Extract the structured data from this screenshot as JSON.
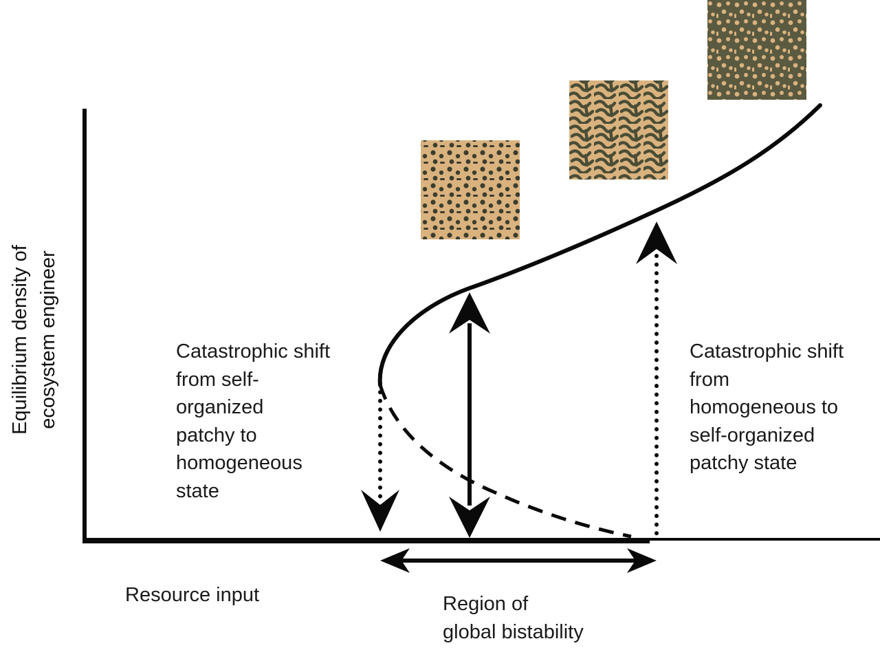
{
  "axes": {
    "x_label": "Resource input",
    "y_label": "Equilibrium density of\necosystem engineer"
  },
  "annotations": {
    "left_shift": "Catastrophic shift\nfrom self-\norganized\npatchy to\nhomogeneous\nstate",
    "right_shift": "Catastrophic shift\nfrom\nhomogeneous to\nself-organized\npatchy state",
    "bistability": "Region of\nglobal bistability"
  },
  "patterns": [
    {
      "name": "spots",
      "background": "#d9b27e",
      "foreground": "#3b3d2e"
    },
    {
      "name": "labyrinth",
      "background": "#d9b27e",
      "foreground": "#4a4d36"
    },
    {
      "name": "gaps",
      "background": "#5a5a40",
      "foreground": "#d9b27e"
    }
  ],
  "colors": {
    "line": "#0a0a0a"
  }
}
